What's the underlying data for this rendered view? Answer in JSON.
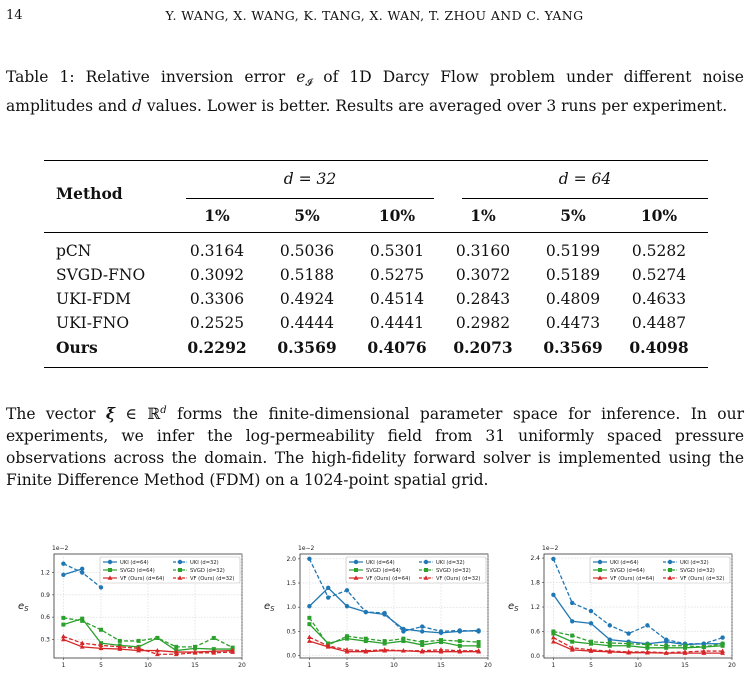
{
  "header": {
    "page_number": "14",
    "authors": "Y. WANG, X. WANG, K. TANG, X. WAN, T. ZHOU AND C. YANG"
  },
  "caption": {
    "label": "Table 1:",
    "text_before_symbol": " Relative inversion error ",
    "symbol": "e",
    "symbol_sub": "𝓘",
    "text_mid": " of 1D Darcy Flow problem under different noise amplitudes and ",
    "d_symbol": "d",
    "text_after": " values.  Lower is better.  Results are averaged over 3 runs per experiment."
  },
  "table": {
    "method_header": "Method",
    "group_headers": [
      "d = 32",
      "d = 64"
    ],
    "noise_levels": [
      "1%",
      "5%",
      "10%",
      "1%",
      "5%",
      "10%"
    ],
    "rows": [
      {
        "method": "pCN",
        "values": [
          "0.3164",
          "0.5036",
          "0.5301",
          "0.3160",
          "0.5199",
          "0.5282"
        ],
        "bold": false
      },
      {
        "method": "SVGD-FNO",
        "values": [
          "0.3092",
          "0.5188",
          "0.5275",
          "0.3072",
          "0.5189",
          "0.5274"
        ],
        "bold": false
      },
      {
        "method": "UKI-FDM",
        "values": [
          "0.3306",
          "0.4924",
          "0.4514",
          "0.2843",
          "0.4809",
          "0.4633"
        ],
        "bold": false
      },
      {
        "method": "UKI-FNO",
        "values": [
          "0.2525",
          "0.4444",
          "0.4441",
          "0.2982",
          "0.4473",
          "0.4487"
        ],
        "bold": false
      },
      {
        "method": "Ours",
        "values": [
          "0.2292",
          "0.3569",
          "0.4076",
          "0.2073",
          "0.3569",
          "0.4098"
        ],
        "bold": true
      }
    ]
  },
  "body": {
    "p1": "The vector ",
    "xi": "ξ",
    "p2": " ∈ ℝ",
    "sup_d": "d",
    "p3": " forms the finite-dimensional parameter space for inference. In our experiments, we infer the log-permeability field from 31 uniformly spaced pressure observations across the domain. The high-fidelity forward solver is implemented using the Finite Difference Method (FDM) on a 1024-point spatial grid."
  },
  "colors": {
    "uki": "#1f77b4",
    "svgd": "#2ca02c",
    "vf": "#d62728"
  },
  "chart_data": [
    {
      "type": "line",
      "ylabel": "e_S",
      "exponent_label": "1e−2",
      "x_ticks": [
        "1",
        "5",
        "10",
        "15",
        "20"
      ],
      "y_ticks": [
        "0.3",
        "0.6",
        "0.9",
        "1.2"
      ],
      "xlim": [
        0,
        20
      ],
      "ylim": [
        0.05,
        1.45
      ],
      "legend_position": "top",
      "legend": [
        "UKI (d=64)",
        "UKI (d=32)",
        "SVGD (d=64)",
        "SVGD (d=32)",
        "VF (Ours) (d=64)",
        "VF (Ours) (d=32)"
      ],
      "x": [
        1,
        3,
        5,
        7,
        9,
        11,
        13,
        15,
        17,
        19
      ],
      "series": [
        {
          "name": "UKI (d=64)",
          "color": "#1f77b4",
          "dashed": false,
          "marker": "circle",
          "values": [
            1.17,
            1.25,
            null,
            null,
            null,
            null,
            null,
            null,
            null,
            null
          ]
        },
        {
          "name": "UKI (d=32)",
          "color": "#1f77b4",
          "dashed": true,
          "marker": "circle",
          "values": [
            1.32,
            1.2,
            1.0,
            null,
            null,
            null,
            null,
            null,
            null,
            null
          ]
        },
        {
          "name": "SVGD (d=64)",
          "color": "#2ca02c",
          "dashed": false,
          "marker": "square",
          "values": [
            0.5,
            0.58,
            0.25,
            0.22,
            0.2,
            0.32,
            0.15,
            0.18,
            0.17,
            0.17
          ]
        },
        {
          "name": "SVGD (d=32)",
          "color": "#2ca02c",
          "dashed": true,
          "marker": "square",
          "values": [
            0.59,
            0.55,
            0.43,
            0.28,
            0.28,
            0.32,
            0.2,
            0.2,
            0.32,
            0.19
          ]
        },
        {
          "name": "VF (Ours) (d=64)",
          "color": "#d62728",
          "dashed": false,
          "marker": "triangle",
          "values": [
            0.3,
            0.2,
            0.18,
            0.17,
            0.15,
            0.15,
            0.13,
            0.13,
            0.14,
            0.15
          ]
        },
        {
          "name": "VF (Ours) (d=32)",
          "color": "#d62728",
          "dashed": true,
          "marker": "triangle",
          "values": [
            0.34,
            0.25,
            0.22,
            0.2,
            0.18,
            0.1,
            0.1,
            0.12,
            0.12,
            0.13
          ]
        }
      ]
    },
    {
      "type": "line",
      "ylabel": "e_S",
      "exponent_label": "1e−2",
      "x_ticks": [
        "1",
        "5",
        "10",
        "15",
        "20"
      ],
      "y_ticks": [
        "0.0",
        "0.5",
        "1.0",
        "1.5",
        "2.0"
      ],
      "xlim": [
        0,
        20
      ],
      "ylim": [
        -0.05,
        2.1
      ],
      "legend_position": "top",
      "legend": [
        "UKI (d=64)",
        "UKI (d=32)",
        "SVGD (d=64)",
        "SVGD (d=32)",
        "VF (Ours) (d=64)",
        "VF (Ours) (d=32)"
      ],
      "x": [
        1,
        3,
        5,
        7,
        9,
        11,
        13,
        15,
        17,
        19
      ],
      "series": [
        {
          "name": "UKI (d=64)",
          "color": "#1f77b4",
          "dashed": false,
          "marker": "circle",
          "values": [
            1.02,
            1.4,
            1.02,
            0.9,
            0.85,
            0.55,
            0.5,
            0.47,
            0.5,
            0.52
          ]
        },
        {
          "name": "UKI (d=32)",
          "color": "#1f77b4",
          "dashed": true,
          "marker": "circle",
          "values": [
            2.0,
            1.2,
            1.35,
            0.9,
            0.88,
            0.5,
            0.6,
            0.5,
            0.52,
            0.5
          ]
        },
        {
          "name": "SVGD (d=64)",
          "color": "#2ca02c",
          "dashed": false,
          "marker": "square",
          "values": [
            0.65,
            0.25,
            0.35,
            0.3,
            0.25,
            0.3,
            0.22,
            0.28,
            0.2,
            0.2
          ]
        },
        {
          "name": "SVGD (d=32)",
          "color": "#2ca02c",
          "dashed": true,
          "marker": "square",
          "values": [
            0.78,
            0.22,
            0.4,
            0.35,
            0.3,
            0.35,
            0.28,
            0.32,
            0.3,
            0.28
          ]
        },
        {
          "name": "VF (Ours) (d=64)",
          "color": "#d62728",
          "dashed": false,
          "marker": "triangle",
          "values": [
            0.3,
            0.18,
            0.08,
            0.08,
            0.1,
            0.1,
            0.08,
            0.08,
            0.08,
            0.08
          ]
        },
        {
          "name": "VF (Ours) (d=32)",
          "color": "#d62728",
          "dashed": true,
          "marker": "triangle",
          "values": [
            0.38,
            0.2,
            0.12,
            0.1,
            0.12,
            0.1,
            0.1,
            0.12,
            0.1,
            0.1
          ]
        }
      ]
    },
    {
      "type": "line",
      "ylabel": "e_S",
      "exponent_label": "1e−2",
      "x_ticks": [
        "1",
        "5",
        "10",
        "15",
        "20"
      ],
      "y_ticks": [
        "0.0",
        "0.6",
        "1.2",
        "1.8",
        "2.4"
      ],
      "xlim": [
        0,
        20
      ],
      "ylim": [
        -0.05,
        2.5
      ],
      "legend_position": "top",
      "legend": [
        "UKI (d=64)",
        "UKI (d=32)",
        "SVGD (d=64)",
        "SVGD (d=32)",
        "VF (Ours) (d=64)",
        "VF (Ours) (d=32)"
      ],
      "x": [
        1,
        3,
        5,
        7,
        9,
        11,
        13,
        15,
        17,
        19
      ],
      "series": [
        {
          "name": "UKI (d=64)",
          "color": "#1f77b4",
          "dashed": false,
          "marker": "circle",
          "values": [
            1.5,
            0.85,
            0.8,
            0.4,
            0.35,
            0.3,
            0.35,
            0.28,
            0.3,
            0.3
          ]
        },
        {
          "name": "UKI (d=32)",
          "color": "#1f77b4",
          "dashed": true,
          "marker": "circle",
          "values": [
            2.38,
            1.3,
            1.1,
            0.75,
            0.55,
            0.75,
            0.4,
            0.3,
            0.3,
            0.45
          ]
        },
        {
          "name": "SVGD (d=64)",
          "color": "#2ca02c",
          "dashed": false,
          "marker": "square",
          "values": [
            0.55,
            0.35,
            0.3,
            0.25,
            0.25,
            0.2,
            0.2,
            0.2,
            0.22,
            0.25
          ]
        },
        {
          "name": "SVGD (d=32)",
          "color": "#2ca02c",
          "dashed": true,
          "marker": "square",
          "values": [
            0.6,
            0.5,
            0.35,
            0.32,
            0.3,
            0.28,
            0.25,
            0.25,
            0.22,
            0.3
          ]
        },
        {
          "name": "VF (Ours) (d=64)",
          "color": "#d62728",
          "dashed": false,
          "marker": "triangle",
          "values": [
            0.35,
            0.15,
            0.12,
            0.1,
            0.08,
            0.08,
            0.07,
            0.07,
            0.07,
            0.07
          ]
        },
        {
          "name": "VF (Ours) (d=32)",
          "color": "#d62728",
          "dashed": true,
          "marker": "triangle",
          "values": [
            0.45,
            0.2,
            0.15,
            0.12,
            0.1,
            0.1,
            0.08,
            0.1,
            0.12,
            0.12
          ]
        }
      ]
    }
  ]
}
